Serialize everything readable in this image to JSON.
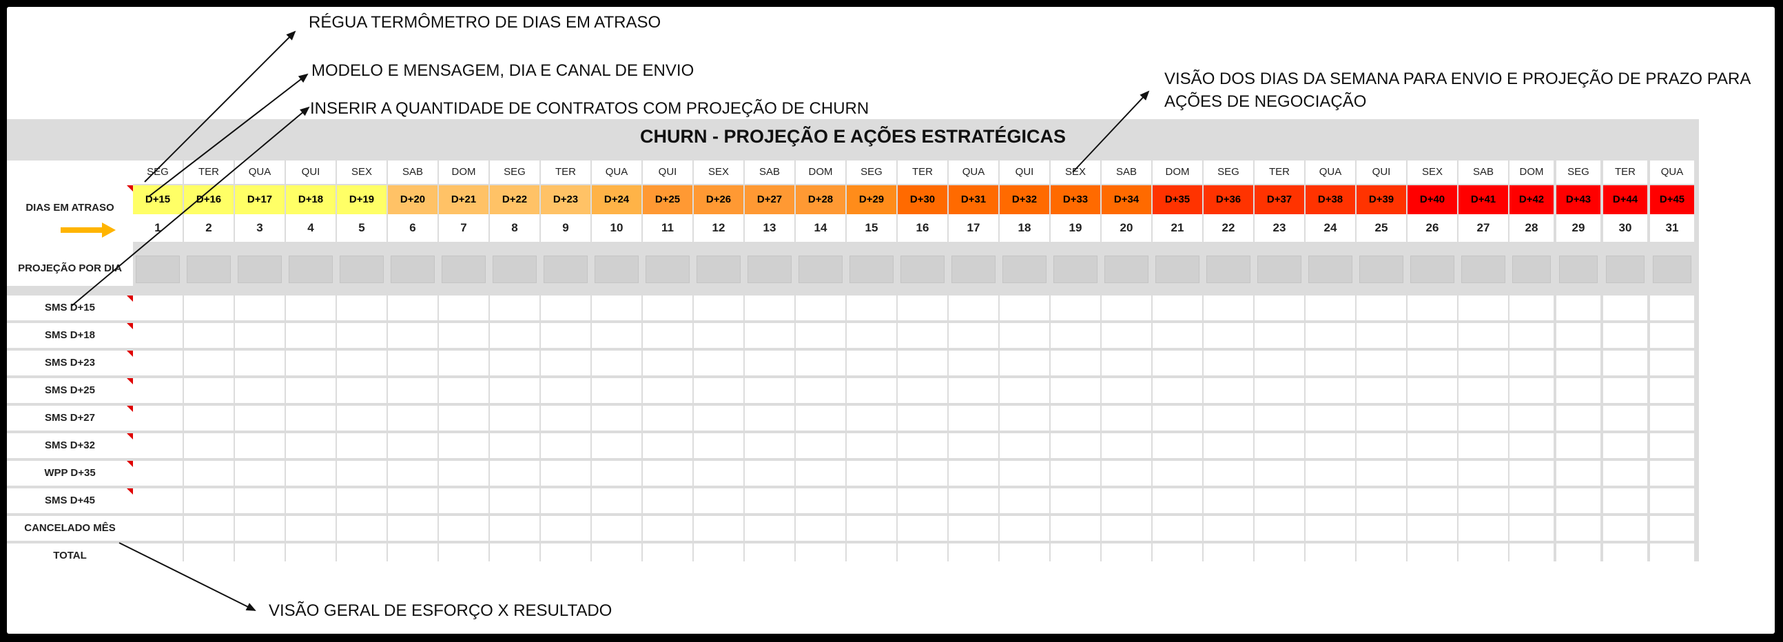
{
  "title": "CHURN - PROJEÇÃO E AÇÕES ESTRATÉGICAS",
  "annotations": {
    "regua": "RÉGUA TERMÔMETRO DE DIAS EM ATRASO",
    "modelo": "MODELO E MENSAGEM, DIA E CANAL DE ENVIO",
    "inserir": "INSERIR A QUANTIDADE DE CONTRATOS COM PROJEÇÃO DE CHURN",
    "visao_dias_line1": "VISÃO DOS DIAS DA SEMANA PARA ENVIO E PROJEÇÃO DE PRAZO PARA",
    "visao_dias_line2": "AÇÕES DE NEGOCIAÇÃO",
    "visao_geral": "VISÃO GERAL DE ESFORÇO X RESULTADO"
  },
  "row_labels": {
    "dias_em_atraso": "DIAS EM ATRASO",
    "projecao_por_dia": "PROJEÇÃO POR DIA"
  },
  "weekdays": [
    "SEG",
    "TER",
    "QUA",
    "QUI",
    "SEX",
    "SAB",
    "DOM",
    "SEG",
    "TER",
    "QUA",
    "QUI",
    "SEX",
    "SAB",
    "DOM",
    "SEG",
    "TER",
    "QUA",
    "QUI",
    "SEX",
    "SAB",
    "DOM",
    "SEG",
    "TER",
    "QUA",
    "QUI",
    "SEX",
    "SAB",
    "DOM",
    "SEG",
    "TER",
    "QUA"
  ],
  "days_late": [
    "D+15",
    "D+16",
    "D+17",
    "D+18",
    "D+19",
    "D+20",
    "D+21",
    "D+22",
    "D+23",
    "D+24",
    "D+25",
    "D+26",
    "D+27",
    "D+28",
    "D+29",
    "D+30",
    "D+31",
    "D+32",
    "D+33",
    "D+34",
    "D+35",
    "D+36",
    "D+37",
    "D+38",
    "D+39",
    "D+40",
    "D+41",
    "D+42",
    "D+43",
    "D+44",
    "D+45"
  ],
  "day_numbers": [
    "1",
    "2",
    "3",
    "4",
    "5",
    "6",
    "7",
    "8",
    "9",
    "10",
    "11",
    "12",
    "13",
    "14",
    "15",
    "16",
    "17",
    "18",
    "19",
    "20",
    "21",
    "22",
    "23",
    "24",
    "25",
    "26",
    "27",
    "28",
    "29",
    "30",
    "31"
  ],
  "heat_colors": [
    "#ffff66",
    "#ffff66",
    "#ffff66",
    "#ffff66",
    "#ffff66",
    "#ffc266",
    "#ffc266",
    "#ffc266",
    "#ffc266",
    "#ffb347",
    "#ff9933",
    "#ff9933",
    "#ff9933",
    "#ff9933",
    "#ff8c1a",
    "#ff6a00",
    "#ff6a00",
    "#ff6a00",
    "#ff6a00",
    "#ff6a00",
    "#ff3300",
    "#ff3300",
    "#ff3300",
    "#ff3300",
    "#ff3300",
    "#ff0000",
    "#ff0000",
    "#ff0000",
    "#ff0000",
    "#ff0000",
    "#ff0000"
  ],
  "action_rows": [
    {
      "label": "SMS D+15",
      "note": true
    },
    {
      "label": "SMS  D+18",
      "note": true
    },
    {
      "label": "SMS D+23",
      "note": true
    },
    {
      "label": "SMS D+25",
      "note": true
    },
    {
      "label": "SMS D+27",
      "note": true
    },
    {
      "label": "SMS D+32",
      "note": true
    },
    {
      "label": "WPP D+35",
      "note": true
    },
    {
      "label": "SMS D+45",
      "note": true
    },
    {
      "label": "CANCELADO MÊS",
      "note": false
    },
    {
      "label": "TOTAL",
      "note": false
    }
  ],
  "colors": {
    "arrow_orange": "#ffb400",
    "note_red": "#e00000"
  }
}
